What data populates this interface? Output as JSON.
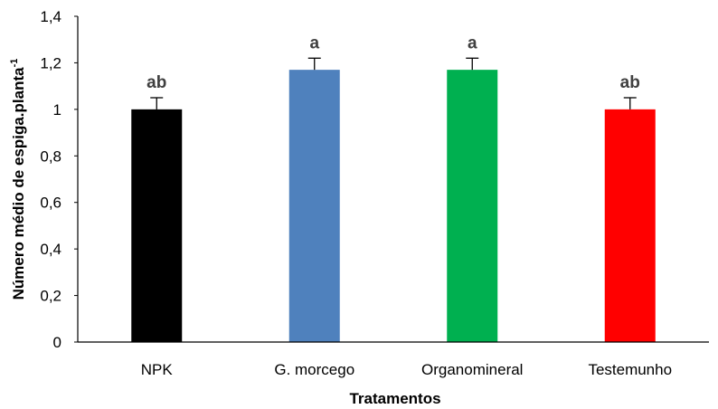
{
  "chart_data": {
    "type": "bar",
    "title": "",
    "categories": [
      "NPK",
      "G. morcego",
      "Organomineral",
      "Testemunho"
    ],
    "values": [
      1.0,
      1.17,
      1.17,
      1.0
    ],
    "errors": [
      0.05,
      0.05,
      0.05,
      0.05
    ],
    "significance_letters": [
      "ab",
      "a",
      "a",
      "ab"
    ],
    "bar_colors": [
      "#000000",
      "#4F81BD",
      "#00B050",
      "#FF0000"
    ],
    "xlabel": "Tratamentos",
    "ylabel_main": "Número  médio de espiga.planta",
    "ylabel_superscript": "-1",
    "ylim": [
      0,
      1.4
    ],
    "yticks": [
      0,
      0.2,
      0.4,
      0.6,
      0.8,
      1,
      1.2,
      1.4
    ],
    "ytick_labels": [
      "0",
      "0,2",
      "0,4",
      "0,6",
      "0,8",
      "1",
      "1,2",
      "1,4"
    ],
    "grid": false,
    "legend": "none"
  }
}
